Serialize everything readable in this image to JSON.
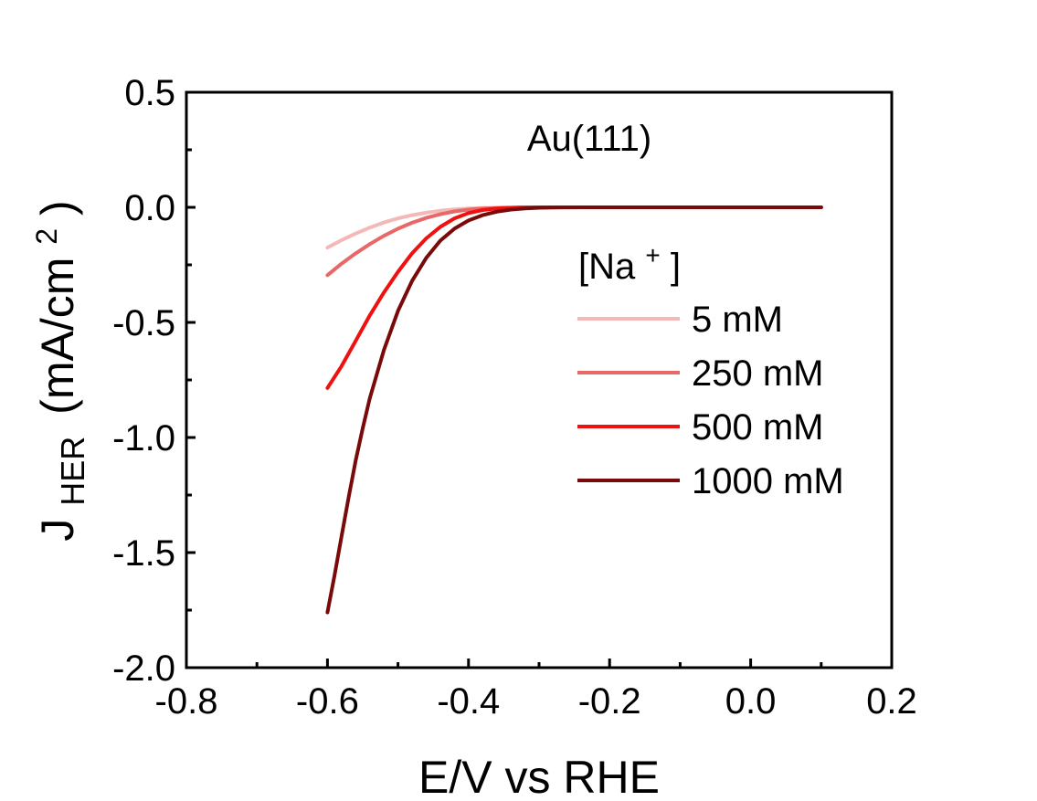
{
  "chart_data": {
    "type": "line",
    "title": "",
    "xlabel": "E/V vs RHE",
    "ylabel": {
      "main": "J",
      "subscript": "HER",
      "unit": "(mA/cm",
      "superscript": "2",
      "close": ")"
    },
    "xlim": [
      -0.8,
      0.2
    ],
    "ylim": [
      -2.0,
      0.5
    ],
    "x_ticks": [
      -0.8,
      -0.6,
      -0.4,
      -0.2,
      0.0,
      0.2
    ],
    "x_tick_labels": [
      "-0.8",
      "-0.6",
      "-0.4",
      "-0.2",
      "0.0",
      "0.2"
    ],
    "y_ticks": [
      -2.0,
      -1.5,
      -1.0,
      -0.5,
      0.0,
      0.5
    ],
    "y_tick_labels": [
      "-2.0",
      "-1.5",
      "-1.0",
      "-0.5",
      "0.0",
      "0.5"
    ],
    "grid": false,
    "annotation": "Au(111)",
    "legend": {
      "title_main": "[Na",
      "title_sup": "+",
      "title_close": "]",
      "placement": "right"
    },
    "series": [
      {
        "name": "5 mM",
        "color": "#f4b8b8",
        "points": [
          [
            -0.6,
            -0.175
          ],
          [
            -0.58,
            -0.143
          ],
          [
            -0.56,
            -0.114
          ],
          [
            -0.54,
            -0.088
          ],
          [
            -0.52,
            -0.066
          ],
          [
            -0.5,
            -0.048
          ],
          [
            -0.48,
            -0.034
          ],
          [
            -0.46,
            -0.023
          ],
          [
            -0.44,
            -0.015
          ],
          [
            -0.42,
            -0.009
          ],
          [
            -0.4,
            -0.005
          ],
          [
            -0.38,
            -0.003
          ],
          [
            -0.35,
            -0.001
          ],
          [
            -0.3,
            0.0
          ],
          [
            -0.2,
            0.0
          ],
          [
            -0.1,
            0.0
          ],
          [
            0.0,
            0.0
          ],
          [
            0.1,
            0.0
          ]
        ]
      },
      {
        "name": "250 mM",
        "color": "#e86868",
        "points": [
          [
            -0.6,
            -0.295
          ],
          [
            -0.58,
            -0.245
          ],
          [
            -0.56,
            -0.2
          ],
          [
            -0.54,
            -0.16
          ],
          [
            -0.52,
            -0.124
          ],
          [
            -0.5,
            -0.093
          ],
          [
            -0.48,
            -0.067
          ],
          [
            -0.46,
            -0.046
          ],
          [
            -0.44,
            -0.03
          ],
          [
            -0.42,
            -0.018
          ],
          [
            -0.4,
            -0.01
          ],
          [
            -0.38,
            -0.005
          ],
          [
            -0.35,
            -0.002
          ],
          [
            -0.3,
            0.0
          ],
          [
            -0.2,
            0.0
          ],
          [
            -0.1,
            0.0
          ],
          [
            0.0,
            0.0
          ],
          [
            0.1,
            0.0
          ]
        ]
      },
      {
        "name": "500 mM",
        "color": "#f01010",
        "points": [
          [
            -0.6,
            -0.785
          ],
          [
            -0.58,
            -0.69
          ],
          [
            -0.56,
            -0.58
          ],
          [
            -0.54,
            -0.47
          ],
          [
            -0.52,
            -0.37
          ],
          [
            -0.5,
            -0.28
          ],
          [
            -0.48,
            -0.2
          ],
          [
            -0.46,
            -0.135
          ],
          [
            -0.44,
            -0.085
          ],
          [
            -0.42,
            -0.048
          ],
          [
            -0.4,
            -0.025
          ],
          [
            -0.38,
            -0.012
          ],
          [
            -0.36,
            -0.005
          ],
          [
            -0.33,
            -0.001
          ],
          [
            -0.3,
            0.0
          ],
          [
            -0.2,
            0.0
          ],
          [
            -0.1,
            0.0
          ],
          [
            0.0,
            0.0
          ],
          [
            0.1,
            0.0
          ]
        ]
      },
      {
        "name": "1000 mM",
        "color": "#7a0a0a",
        "points": [
          [
            -0.6,
            -1.76
          ],
          [
            -0.59,
            -1.6
          ],
          [
            -0.58,
            -1.43
          ],
          [
            -0.57,
            -1.26
          ],
          [
            -0.56,
            -1.1
          ],
          [
            -0.55,
            -0.96
          ],
          [
            -0.54,
            -0.83
          ],
          [
            -0.52,
            -0.62
          ],
          [
            -0.5,
            -0.45
          ],
          [
            -0.48,
            -0.32
          ],
          [
            -0.46,
            -0.22
          ],
          [
            -0.44,
            -0.145
          ],
          [
            -0.42,
            -0.093
          ],
          [
            -0.4,
            -0.057
          ],
          [
            -0.38,
            -0.034
          ],
          [
            -0.36,
            -0.019
          ],
          [
            -0.34,
            -0.01
          ],
          [
            -0.32,
            -0.005
          ],
          [
            -0.3,
            -0.002
          ],
          [
            -0.27,
            -0.0005
          ],
          [
            -0.2,
            0.0
          ],
          [
            -0.1,
            0.0
          ],
          [
            0.0,
            0.0
          ],
          [
            0.1,
            0.0
          ]
        ]
      }
    ]
  }
}
